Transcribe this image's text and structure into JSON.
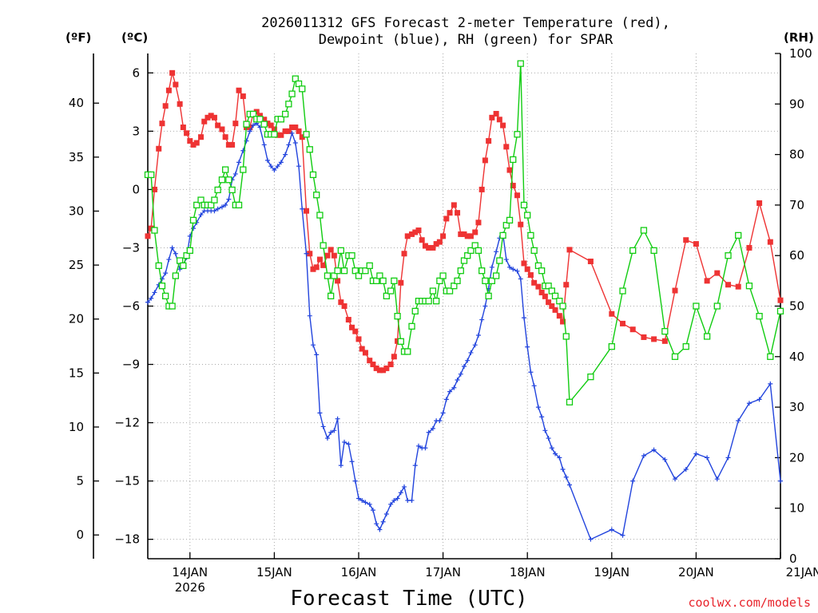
{
  "chart_data": {
    "type": "line",
    "title": "2026011312 GFS Forecast 2-meter Temperature (red),",
    "title2": "Dewpoint (blue), RH (green) for SPAR",
    "xlabel": "Forecast Time (UTC)",
    "credit": "coolwx.com/models",
    "units": {
      "f": "(ºF)",
      "c": "(ºC)",
      "rh": "(RH)"
    },
    "x_range_days": [
      13.5,
      21.0
    ],
    "c_range": [
      -19,
      7
    ],
    "rh_range": [
      0,
      100
    ],
    "x_ticks": [
      {
        "x": 14,
        "label": "14JAN",
        "sub": "2026"
      },
      {
        "x": 15,
        "label": "15JAN",
        "sub": ""
      },
      {
        "x": 16,
        "label": "16JAN",
        "sub": ""
      },
      {
        "x": 17,
        "label": "17JAN",
        "sub": ""
      },
      {
        "x": 18,
        "label": "18JAN",
        "sub": ""
      },
      {
        "x": 19,
        "label": "19JAN",
        "sub": ""
      },
      {
        "x": 20,
        "label": "20JAN",
        "sub": ""
      },
      {
        "x": 21,
        "label": "21JAN",
        "sub": ""
      }
    ],
    "c_ticks": [
      6,
      3,
      0,
      -3,
      -6,
      -9,
      -12,
      -15,
      -18
    ],
    "c_tick_labels": [
      "6",
      "3",
      "0",
      "−3",
      "−6",
      "−9",
      "−12",
      "−15",
      "−18"
    ],
    "f_ticks": [
      40,
      35,
      30,
      25,
      20,
      15,
      10,
      5,
      0
    ],
    "f_tick_labels": [
      "40",
      "35",
      "30",
      "25",
      "20",
      "15",
      "10",
      "5",
      "0"
    ],
    "rh_ticks": [
      100,
      90,
      80,
      70,
      60,
      50,
      40,
      30,
      20,
      10,
      0
    ],
    "rh_tick_labels": [
      "100",
      "90",
      "80",
      "70",
      "60",
      "50",
      "40",
      "30",
      "20",
      "10",
      "0"
    ],
    "series": [
      {
        "name": "Temperature",
        "unit": "C",
        "color": "#ee3333",
        "marker": "filled-square",
        "x": [
          13.5,
          13.54,
          13.58,
          13.63,
          13.67,
          13.71,
          13.75,
          13.79,
          13.83,
          13.88,
          13.92,
          13.96,
          14.0,
          14.04,
          14.08,
          14.13,
          14.17,
          14.21,
          14.25,
          14.29,
          14.33,
          14.38,
          14.42,
          14.46,
          14.5,
          14.54,
          14.58,
          14.63,
          14.67,
          14.71,
          14.75,
          14.79,
          14.83,
          14.88,
          14.92,
          14.96,
          15.0,
          15.04,
          15.08,
          15.13,
          15.17,
          15.21,
          15.25,
          15.29,
          15.33,
          15.38,
          15.42,
          15.46,
          15.5,
          15.54,
          15.58,
          15.63,
          15.67,
          15.71,
          15.75,
          15.79,
          15.83,
          15.88,
          15.92,
          15.96,
          16.0,
          16.04,
          16.08,
          16.13,
          16.17,
          16.21,
          16.25,
          16.29,
          16.33,
          16.38,
          16.42,
          16.46,
          16.5,
          16.54,
          16.58,
          16.63,
          16.67,
          16.71,
          16.75,
          16.79,
          16.83,
          16.88,
          16.92,
          16.96,
          17.0,
          17.04,
          17.08,
          17.13,
          17.17,
          17.21,
          17.25,
          17.29,
          17.33,
          17.38,
          17.42,
          17.46,
          17.5,
          17.54,
          17.58,
          17.63,
          17.67,
          17.71,
          17.75,
          17.79,
          17.83,
          17.88,
          17.92,
          17.96,
          18.0,
          18.04,
          18.08,
          18.13,
          18.17,
          18.21,
          18.25,
          18.29,
          18.33,
          18.38,
          18.42,
          18.46,
          18.5,
          18.75,
          19.0,
          19.13,
          19.25,
          19.38,
          19.5,
          19.63,
          19.75,
          19.88,
          20.0,
          20.13,
          20.25,
          20.38,
          20.5,
          20.63,
          20.75,
          20.88,
          21.0
        ],
        "y": [
          -2.4,
          -2.0,
          0.0,
          2.1,
          3.4,
          4.3,
          5.1,
          6.0,
          5.4,
          4.4,
          3.2,
          2.9,
          2.5,
          2.3,
          2.4,
          2.7,
          3.5,
          3.7,
          3.8,
          3.7,
          3.3,
          3.1,
          2.7,
          2.3,
          2.3,
          3.4,
          5.1,
          4.8,
          3.2,
          3.2,
          3.9,
          4.0,
          3.8,
          3.6,
          3.4,
          3.3,
          3.1,
          2.8,
          2.8,
          3.0,
          3.0,
          3.2,
          3.2,
          3.0,
          2.7,
          -1.1,
          -3.3,
          -4.1,
          -4.0,
          -3.6,
          -3.9,
          -3.4,
          -3.1,
          -3.4,
          -4.7,
          -5.8,
          -6.0,
          -6.7,
          -7.1,
          -7.3,
          -7.7,
          -8.2,
          -8.4,
          -8.8,
          -9.0,
          -9.2,
          -9.3,
          -9.3,
          -9.2,
          -9.0,
          -8.6,
          -7.8,
          -4.8,
          -3.3,
          -2.4,
          -2.3,
          -2.2,
          -2.1,
          -2.6,
          -2.9,
          -3.0,
          -3.0,
          -2.8,
          -2.7,
          -2.4,
          -1.5,
          -1.2,
          -0.8,
          -1.2,
          -2.3,
          -2.3,
          -2.4,
          -2.4,
          -2.2,
          -1.7,
          0.0,
          1.5,
          2.5,
          3.7,
          3.9,
          3.6,
          3.3,
          2.2,
          1.0,
          0.2,
          -0.3,
          -1.8,
          -3.8,
          -4.1,
          -4.4,
          -4.8,
          -5.0,
          -5.3,
          -5.5,
          -5.8,
          -6.0,
          -6.2,
          -6.5,
          -6.8,
          -4.9,
          -3.1,
          -3.7,
          -6.4,
          -6.9,
          -7.2,
          -7.6,
          -7.7,
          -7.8,
          -5.2,
          -2.6,
          -2.8,
          -4.7,
          -4.3,
          -4.9,
          -5.0,
          -3.0,
          -0.7,
          -2.7,
          -5.7
        ]
      },
      {
        "name": "Dewpoint",
        "unit": "C",
        "color": "#2244dd",
        "marker": "plus",
        "x": [
          13.5,
          13.54,
          13.58,
          13.63,
          13.67,
          13.71,
          13.75,
          13.79,
          13.83,
          13.88,
          13.92,
          13.96,
          14.0,
          14.04,
          14.08,
          14.13,
          14.17,
          14.21,
          14.25,
          14.29,
          14.33,
          14.38,
          14.42,
          14.46,
          14.5,
          14.54,
          14.58,
          14.63,
          14.67,
          14.71,
          14.75,
          14.79,
          14.83,
          14.88,
          14.92,
          14.96,
          15.0,
          15.04,
          15.08,
          15.13,
          15.17,
          15.21,
          15.25,
          15.29,
          15.33,
          15.38,
          15.42,
          15.46,
          15.5,
          15.54,
          15.58,
          15.63,
          15.67,
          15.71,
          15.75,
          15.79,
          15.83,
          15.88,
          15.92,
          15.96,
          16.0,
          16.04,
          16.08,
          16.13,
          16.17,
          16.21,
          16.25,
          16.29,
          16.33,
          16.38,
          16.42,
          16.46,
          16.5,
          16.54,
          16.58,
          16.63,
          16.67,
          16.71,
          16.75,
          16.79,
          16.83,
          16.88,
          16.92,
          16.96,
          17.0,
          17.04,
          17.08,
          17.13,
          17.17,
          17.21,
          17.25,
          17.29,
          17.33,
          17.38,
          17.42,
          17.46,
          17.5,
          17.54,
          17.58,
          17.63,
          17.67,
          17.71,
          17.75,
          17.79,
          17.83,
          17.88,
          17.92,
          17.96,
          18.0,
          18.04,
          18.08,
          18.13,
          18.17,
          18.21,
          18.25,
          18.29,
          18.33,
          18.38,
          18.42,
          18.46,
          18.5,
          18.75,
          19.0,
          19.13,
          19.25,
          19.38,
          19.5,
          19.63,
          19.75,
          19.88,
          20.0,
          20.13,
          20.25,
          20.38,
          20.5,
          20.63,
          20.75,
          20.88,
          21.0
        ],
        "y": [
          -5.8,
          -5.6,
          -5.3,
          -4.9,
          -4.6,
          -4.3,
          -3.6,
          -3.0,
          -3.3,
          -4.1,
          -3.9,
          -3.5,
          -2.4,
          -2.0,
          -1.7,
          -1.3,
          -1.1,
          -1.1,
          -1.1,
          -1.1,
          -1.0,
          -0.9,
          -0.8,
          -0.5,
          0.5,
          0.8,
          1.4,
          2.0,
          2.5,
          3.0,
          3.3,
          3.4,
          3.2,
          2.3,
          1.5,
          1.2,
          1.0,
          1.2,
          1.4,
          1.8,
          2.3,
          2.9,
          2.4,
          1.2,
          -1.0,
          -3.3,
          -6.5,
          -8.0,
          -8.5,
          -11.5,
          -12.2,
          -12.8,
          -12.5,
          -12.4,
          -11.8,
          -14.2,
          -13.0,
          -13.1,
          -14.0,
          -15.0,
          -15.9,
          -16.0,
          -16.1,
          -16.2,
          -16.5,
          -17.2,
          -17.5,
          -17.1,
          -16.7,
          -16.2,
          -16.0,
          -15.9,
          -15.6,
          -15.3,
          -16.0,
          -16.0,
          -14.2,
          -13.2,
          -13.3,
          -13.3,
          -12.5,
          -12.3,
          -11.9,
          -11.9,
          -11.5,
          -10.8,
          -10.4,
          -10.2,
          -9.8,
          -9.5,
          -9.1,
          -8.8,
          -8.4,
          -8.0,
          -7.5,
          -6.7,
          -6.0,
          -5.1,
          -4.0,
          -3.2,
          -2.5,
          -2.3,
          -3.6,
          -4.0,
          -4.1,
          -4.2,
          -4.6,
          -6.6,
          -8.1,
          -9.4,
          -10.1,
          -11.2,
          -11.7,
          -12.4,
          -12.8,
          -13.3,
          -13.6,
          -13.8,
          -14.4,
          -14.8,
          -15.2,
          -18.0,
          -17.5,
          -17.8,
          -15.0,
          -13.7,
          -13.4,
          -13.9,
          -14.9,
          -14.4,
          -13.6,
          -13.8,
          -14.9,
          -13.8,
          -11.9,
          -11.0,
          -10.8,
          -10.0,
          -15.0
        ]
      },
      {
        "name": "RH",
        "unit": "%",
        "color": "#11cc11",
        "marker": "open-square",
        "x": [
          13.5,
          13.54,
          13.58,
          13.63,
          13.67,
          13.71,
          13.75,
          13.79,
          13.83,
          13.88,
          13.92,
          13.96,
          14.0,
          14.04,
          14.08,
          14.13,
          14.17,
          14.21,
          14.25,
          14.29,
          14.33,
          14.38,
          14.42,
          14.46,
          14.5,
          14.54,
          14.58,
          14.63,
          14.67,
          14.71,
          14.75,
          14.79,
          14.83,
          14.88,
          14.92,
          14.96,
          15.0,
          15.04,
          15.08,
          15.13,
          15.17,
          15.21,
          15.25,
          15.29,
          15.33,
          15.38,
          15.42,
          15.46,
          15.5,
          15.54,
          15.58,
          15.63,
          15.67,
          15.71,
          15.75,
          15.79,
          15.83,
          15.88,
          15.92,
          15.96,
          16.0,
          16.04,
          16.08,
          16.13,
          16.17,
          16.21,
          16.25,
          16.29,
          16.33,
          16.38,
          16.42,
          16.46,
          16.5,
          16.54,
          16.58,
          16.63,
          16.67,
          16.71,
          16.75,
          16.79,
          16.83,
          16.88,
          16.92,
          16.96,
          17.0,
          17.04,
          17.08,
          17.13,
          17.17,
          17.21,
          17.25,
          17.29,
          17.33,
          17.38,
          17.42,
          17.46,
          17.5,
          17.54,
          17.58,
          17.63,
          17.67,
          17.71,
          17.75,
          17.79,
          17.83,
          17.88,
          17.92,
          17.96,
          18.0,
          18.04,
          18.08,
          18.13,
          18.17,
          18.21,
          18.25,
          18.29,
          18.33,
          18.38,
          18.42,
          18.46,
          18.5,
          18.75,
          19.0,
          19.13,
          19.25,
          19.38,
          19.5,
          19.63,
          19.75,
          19.88,
          20.0,
          20.13,
          20.25,
          20.38,
          20.5,
          20.63,
          20.75,
          20.88,
          21.0
        ],
        "y": [
          76,
          76,
          65,
          58,
          54,
          52,
          50,
          50,
          56,
          59,
          58,
          60,
          61,
          67,
          70,
          71,
          70,
          70,
          70,
          71,
          73,
          75,
          77,
          75,
          73,
          70,
          70,
          77,
          86,
          88,
          88,
          87,
          87,
          86,
          84,
          84,
          84,
          87,
          87,
          88,
          90,
          92,
          95,
          94,
          93,
          84,
          81,
          76,
          72,
          68,
          62,
          56,
          52,
          56,
          57,
          61,
          57,
          60,
          60,
          57,
          56,
          57,
          57,
          58,
          55,
          55,
          56,
          55,
          52,
          53,
          55,
          48,
          43,
          41,
          41,
          46,
          49,
          51,
          51,
          51,
          51,
          53,
          51,
          55,
          56,
          53,
          53,
          54,
          55,
          57,
          59,
          60,
          61,
          62,
          61,
          57,
          55,
          52,
          55,
          56,
          59,
          64,
          66,
          67,
          79,
          84,
          98,
          70,
          68,
          64,
          61,
          58,
          57,
          54,
          54,
          53,
          52,
          51,
          50,
          44,
          31,
          36,
          42,
          53,
          61,
          65,
          61,
          45,
          40,
          42,
          50,
          44,
          50,
          60,
          64,
          54,
          48,
          40,
          49
        ]
      }
    ]
  }
}
